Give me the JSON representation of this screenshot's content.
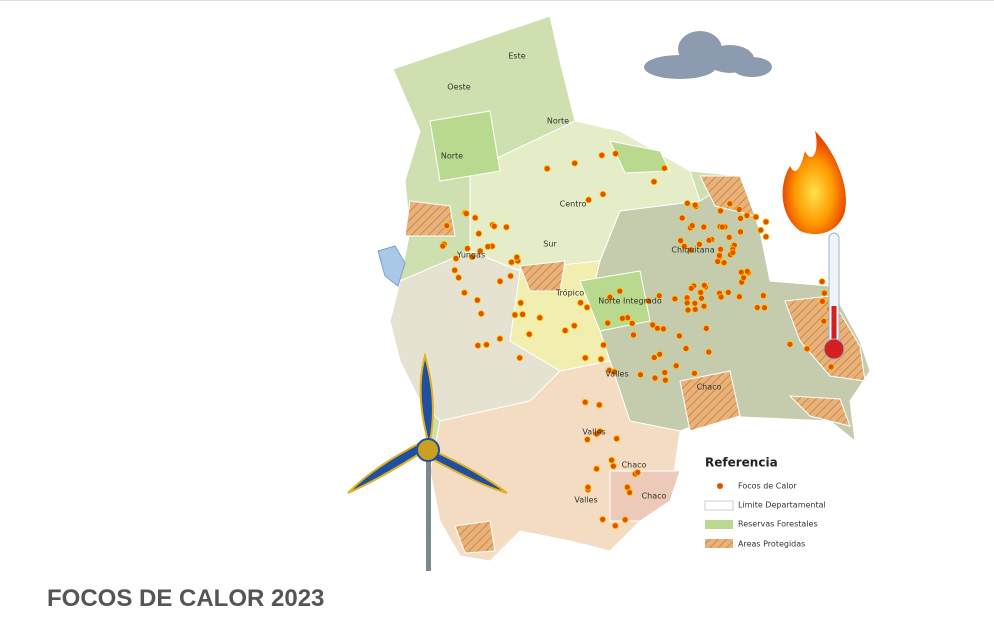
{
  "map": {
    "labels": [
      "Este",
      "Oeste",
      "Norte",
      "Norte",
      "Centro",
      "Sur",
      "Yungas",
      "Chiquitana",
      "Trópico",
      "Norte Integrado",
      "Valles",
      "Chaco",
      "Valles",
      "Chaco",
      "Valles",
      "Chaco"
    ],
    "legend": {
      "title": "Referencia",
      "items": [
        "Focos de Calor",
        "Limite Departamental",
        "Reservas Forestales",
        "Areas Protegidas"
      ]
    }
  },
  "caption": "FOCOS DE CALOR 2023"
}
